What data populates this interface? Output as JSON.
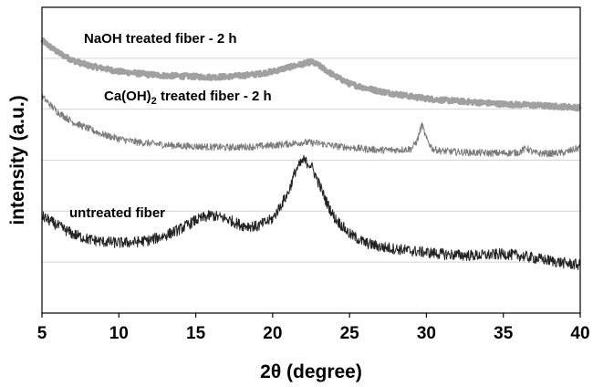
{
  "chart_data": {
    "type": "line",
    "xlabel_parts": [
      "2",
      "θ",
      " (degree)"
    ],
    "ylabel": "intensity (a.u.)",
    "xlim": [
      5,
      40
    ],
    "ylim": [
      0,
      6
    ],
    "xticks": [
      5,
      10,
      15,
      20,
      25,
      30,
      35,
      40
    ],
    "xtick_labels": [
      "5",
      "10",
      "15",
      "20",
      "25",
      "30",
      "35",
      "40"
    ],
    "grid": "horizontal",
    "legend": "none",
    "annotations": {
      "naoh": "NaOH treated fiber - 2 h",
      "caoh_prefix": "Ca(OH)",
      "caoh_sub": "2",
      "caoh_suffix": " treated fiber  - 2 h",
      "untreated": "untreated fiber"
    },
    "colors": {
      "naoh": "#a0a0a0",
      "caoh": "#7a7a7a",
      "untreated": "#222222",
      "grid": "#d4d4d4"
    },
    "series": [
      {
        "key": "naoh",
        "x": [
          5,
          6,
          7,
          8,
          9,
          10,
          11,
          12,
          13,
          14,
          15,
          16,
          17,
          18,
          19,
          20,
          21,
          22,
          22.5,
          23,
          24,
          25,
          26,
          27,
          28,
          29,
          30,
          31,
          32,
          33,
          34,
          35,
          36,
          37,
          38,
          39,
          40
        ],
        "y": [
          5.35,
          5.12,
          4.96,
          4.86,
          4.8,
          4.74,
          4.71,
          4.68,
          4.66,
          4.65,
          4.64,
          4.63,
          4.64,
          4.66,
          4.69,
          4.74,
          4.82,
          4.89,
          4.93,
          4.86,
          4.66,
          4.5,
          4.42,
          4.35,
          4.3,
          4.25,
          4.21,
          4.18,
          4.16,
          4.14,
          4.12,
          4.1,
          4.09,
          4.08,
          4.06,
          4.05,
          4.03
        ]
      },
      {
        "key": "caoh",
        "x": [
          5,
          6,
          7,
          8,
          9,
          10,
          11,
          12,
          13,
          14,
          15,
          16,
          17,
          18,
          19,
          20,
          21,
          22,
          23,
          24,
          25,
          26,
          27,
          28,
          29,
          29.4,
          29.7,
          30,
          30.4,
          31,
          32,
          33,
          34,
          35,
          36,
          36.5,
          37,
          38,
          39,
          40
        ],
        "y": [
          4.25,
          3.95,
          3.75,
          3.62,
          3.5,
          3.42,
          3.36,
          3.33,
          3.3,
          3.28,
          3.27,
          3.26,
          3.25,
          3.26,
          3.27,
          3.29,
          3.32,
          3.35,
          3.33,
          3.28,
          3.25,
          3.22,
          3.2,
          3.2,
          3.22,
          3.38,
          3.7,
          3.42,
          3.22,
          3.18,
          3.16,
          3.15,
          3.14,
          3.14,
          3.15,
          3.24,
          3.14,
          3.13,
          3.15,
          3.25
        ]
      },
      {
        "key": "untreated",
        "x": [
          5,
          6,
          7,
          8,
          9,
          10,
          11,
          12,
          13,
          14,
          15,
          16,
          17,
          18,
          19,
          20,
          21,
          21.5,
          22,
          22.5,
          23,
          23.5,
          24,
          25,
          26,
          27,
          28,
          29,
          30,
          31,
          32,
          33,
          34,
          35,
          36,
          37,
          38,
          39,
          40
        ],
        "y": [
          1.9,
          1.72,
          1.55,
          1.45,
          1.4,
          1.38,
          1.39,
          1.43,
          1.52,
          1.65,
          1.82,
          1.92,
          1.85,
          1.72,
          1.7,
          1.85,
          2.35,
          2.8,
          3.0,
          2.9,
          2.55,
          2.18,
          1.88,
          1.55,
          1.38,
          1.3,
          1.26,
          1.22,
          1.19,
          1.16,
          1.14,
          1.13,
          1.14,
          1.16,
          1.13,
          1.08,
          1.03,
          0.98,
          0.94
        ]
      }
    ]
  }
}
